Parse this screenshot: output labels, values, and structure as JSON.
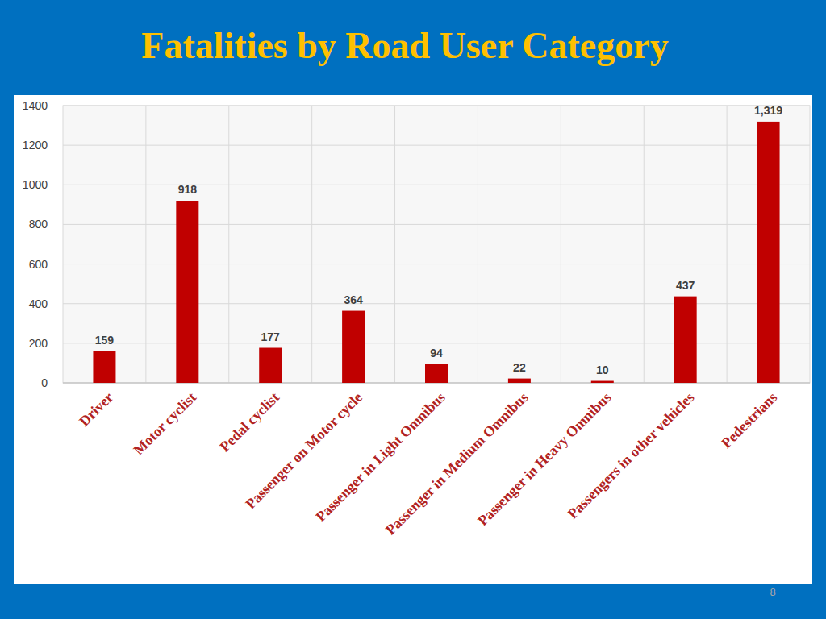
{
  "chart_data": {
    "type": "bar",
    "title": "Fatalities by Road User Category",
    "categories": [
      "Driver",
      "Motor cyclist",
      "Pedal cyclist",
      "Passenger on Motor cycle",
      "Passenger in Light Omnibus",
      "Passenger in Medium Omnibus",
      "Passenger in Heavy Omnibus",
      "Passengers in other vehicles",
      "Pedestrians"
    ],
    "values": [
      159,
      918,
      177,
      364,
      94,
      22,
      10,
      437,
      1319
    ],
    "value_labels": [
      "159",
      "918",
      "177",
      "364",
      "94",
      "22",
      "10",
      "437",
      "1,319"
    ],
    "color": "#c00000",
    "ylim": [
      0,
      1400
    ],
    "yticks": [
      0,
      200,
      400,
      600,
      800,
      1000,
      1200,
      1400
    ],
    "grid": true,
    "data_labels": true
  },
  "page_number": 8
}
